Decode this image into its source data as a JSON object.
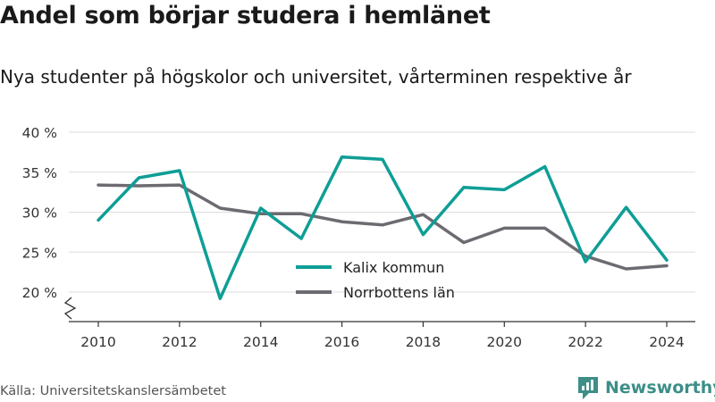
{
  "header": {
    "title": "Andel som börjar studera i hemlänet",
    "subtitle": "Nya studenter på högskolor och universitet, vårterminen respektive år"
  },
  "footer": {
    "source": "Källa: Universitetskanslersämbetet",
    "brand": "Newsworthy",
    "brand_icon": "newsworthy-logo-icon"
  },
  "colors": {
    "kalix": "#0e9e96",
    "norrbotten": "#6d6b71",
    "grid": "#dddddd",
    "axis": "#333333",
    "brand": "#3d8f88"
  },
  "chart_data": {
    "type": "line",
    "x": [
      2010,
      2011,
      2012,
      2013,
      2014,
      2015,
      2016,
      2017,
      2018,
      2019,
      2020,
      2021,
      2022,
      2023,
      2024
    ],
    "xticks": [
      "2010",
      "2012",
      "2014",
      "2016",
      "2018",
      "2020",
      "2022",
      "2024"
    ],
    "ylim": [
      20,
      40
    ],
    "yticks": [
      "20 %",
      "25 %",
      "30 %",
      "35 %",
      "40 %"
    ],
    "ytick_values": [
      20,
      25,
      30,
      35,
      40
    ],
    "grid": true,
    "axis_break": true,
    "legend_position": "center-bottom",
    "series": [
      {
        "name": "Kalix kommun",
        "values": [
          29.0,
          34.3,
          35.2,
          19.2,
          30.5,
          26.7,
          36.9,
          36.6,
          27.2,
          33.1,
          32.8,
          35.7,
          23.8,
          30.6,
          24.0
        ]
      },
      {
        "name": "Norrbottens län",
        "values": [
          33.4,
          33.3,
          33.4,
          30.5,
          29.8,
          29.8,
          28.8,
          28.4,
          29.7,
          26.2,
          28.0,
          28.0,
          24.5,
          22.9,
          23.3
        ]
      }
    ]
  }
}
